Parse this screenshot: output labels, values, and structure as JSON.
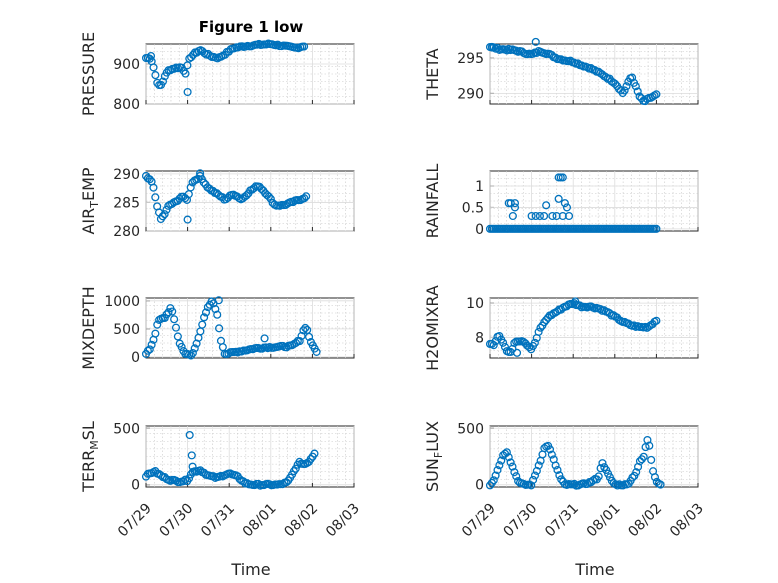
{
  "figure": {
    "title": "Figure 1 low",
    "marker_color": "#0072bd"
  },
  "x_ticks": [
    "07/29",
    "07/30",
    "07/31",
    "08/01",
    "08/02",
    "08/03"
  ],
  "x_label": "Time",
  "chart_data": [
    {
      "type": "scatter",
      "id": "pressure",
      "ylabel": "PRESSURE",
      "title": "Figure 1 low",
      "xlim": [
        0,
        5
      ],
      "ylim": [
        800,
        950
      ],
      "yticks": [
        800,
        900
      ],
      "grid": true,
      "x_axis_ticks": [
        "07/29",
        "07/30",
        "07/31",
        "08/01",
        "08/02",
        "08/03"
      ],
      "anchors": [
        [
          0,
          915
        ],
        [
          0.1,
          915
        ],
        [
          0.15,
          905
        ],
        [
          0.25,
          862
        ],
        [
          0.3,
          845
        ],
        [
          0.38,
          848
        ],
        [
          0.45,
          870
        ],
        [
          0.55,
          885
        ],
        [
          0.7,
          890
        ],
        [
          0.85,
          892
        ],
        [
          0.95,
          878
        ],
        [
          1.05,
          915
        ],
        [
          1.15,
          925
        ],
        [
          1.3,
          935
        ],
        [
          1.45,
          925
        ],
        [
          1.6,
          918
        ],
        [
          1.75,
          915
        ],
        [
          1.9,
          925
        ],
        [
          2.1,
          940
        ],
        [
          2.4,
          945
        ],
        [
          2.7,
          948
        ],
        [
          3.0,
          950
        ],
        [
          3.3,
          945
        ],
        [
          3.6,
          940
        ],
        [
          3.8,
          945
        ]
      ],
      "outliers": [
        [
          1.0,
          830
        ],
        [
          0.12,
          920
        ]
      ]
    },
    {
      "type": "scatter",
      "id": "theta",
      "ylabel": "THETA",
      "xlim": [
        0,
        5
      ],
      "ylim": [
        288.5,
        297
      ],
      "yticks": [
        290,
        295
      ],
      "grid": true,
      "x_axis_ticks": [
        "07/29",
        "07/30",
        "07/31",
        "08/01",
        "08/02",
        "08/03"
      ],
      "anchors": [
        [
          0,
          296.6
        ],
        [
          0.2,
          296.3
        ],
        [
          0.4,
          296.2
        ],
        [
          0.6,
          296.1
        ],
        [
          0.8,
          295.8
        ],
        [
          1.0,
          295.5
        ],
        [
          1.2,
          296.0
        ],
        [
          1.4,
          295.6
        ],
        [
          1.6,
          295.0
        ],
        [
          1.8,
          294.7
        ],
        [
          2.0,
          294.5
        ],
        [
          2.2,
          294.0
        ],
        [
          2.4,
          293.6
        ],
        [
          2.6,
          293.0
        ],
        [
          2.8,
          292.3
        ],
        [
          3.0,
          291.5
        ],
        [
          3.2,
          290.0
        ],
        [
          3.4,
          292.5
        ],
        [
          3.5,
          291.0
        ],
        [
          3.6,
          289.5
        ],
        [
          3.7,
          288.8
        ],
        [
          3.8,
          289.2
        ],
        [
          3.9,
          289.5
        ],
        [
          4.0,
          289.8
        ]
      ],
      "outliers": [
        [
          1.1,
          297.3
        ],
        [
          0.05,
          296.5
        ]
      ]
    },
    {
      "type": "scatter",
      "id": "air_temp",
      "ylabel": "AIR_TEMP",
      "ylabel_main": "AIR",
      "ylabel_sub": "T",
      "ylabel_rest": "EMP",
      "xlim": [
        0,
        5
      ],
      "ylim": [
        280,
        290.5
      ],
      "yticks": [
        280,
        285,
        290
      ],
      "grid": true,
      "x_axis_ticks": [
        "07/29",
        "07/30",
        "07/31",
        "08/01",
        "08/02",
        "08/03"
      ],
      "anchors": [
        [
          0,
          289.5
        ],
        [
          0.15,
          288.5
        ],
        [
          0.25,
          285
        ],
        [
          0.35,
          282
        ],
        [
          0.45,
          283
        ],
        [
          0.55,
          284.5
        ],
        [
          0.7,
          285
        ],
        [
          0.85,
          286
        ],
        [
          1.0,
          285.5
        ],
        [
          1.1,
          288.5
        ],
        [
          1.3,
          289.5
        ],
        [
          1.5,
          287.5
        ],
        [
          1.7,
          286.5
        ],
        [
          1.9,
          285.5
        ],
        [
          2.1,
          286.5
        ],
        [
          2.3,
          285.5
        ],
        [
          2.5,
          287
        ],
        [
          2.7,
          288
        ],
        [
          2.9,
          286.5
        ],
        [
          3.1,
          284.5
        ],
        [
          3.3,
          284.5
        ],
        [
          3.5,
          285
        ],
        [
          3.7,
          285.5
        ],
        [
          3.85,
          286
        ]
      ],
      "outliers": [
        [
          1.0,
          282
        ],
        [
          1.3,
          290.1
        ]
      ]
    },
    {
      "type": "scatter",
      "id": "rainfall",
      "ylabel": "RAINFALL",
      "xlim": [
        0,
        5
      ],
      "ylim": [
        -0.05,
        1.35
      ],
      "yticks": [
        0,
        0.5,
        1
      ],
      "ytick_labels": [
        "0",
        "0.5",
        "1"
      ],
      "grid": true,
      "x_axis_ticks": [
        "07/29",
        "07/30",
        "07/31",
        "08/01",
        "08/02",
        "08/03"
      ],
      "anchors": [
        [
          0,
          0
        ],
        [
          4.0,
          0
        ]
      ],
      "outliers": [
        [
          0.5,
          0.6
        ],
        [
          0.6,
          0.6
        ],
        [
          0.55,
          0.3
        ],
        [
          0.45,
          0.6
        ],
        [
          0.6,
          0.5
        ],
        [
          1.0,
          0.3
        ],
        [
          1.1,
          0.3
        ],
        [
          1.2,
          0.3
        ],
        [
          1.3,
          0.3
        ],
        [
          1.35,
          0.55
        ],
        [
          1.5,
          0.3
        ],
        [
          1.6,
          0.3
        ],
        [
          1.65,
          1.2
        ],
        [
          1.7,
          1.2
        ],
        [
          1.75,
          1.2
        ],
        [
          1.65,
          0.7
        ],
        [
          1.8,
          0.6
        ],
        [
          1.85,
          0.5
        ],
        [
          1.9,
          0.3
        ],
        [
          1.75,
          0.3
        ]
      ]
    },
    {
      "type": "scatter",
      "id": "mixdepth",
      "ylabel": "MIXDEPTH",
      "xlim": [
        0,
        5
      ],
      "ylim": [
        -20,
        1050
      ],
      "yticks": [
        0,
        500,
        1000
      ],
      "grid": true,
      "x_axis_ticks": [
        "07/29",
        "07/30",
        "07/31",
        "08/01",
        "08/02",
        "08/03"
      ],
      "anchors": [
        [
          0,
          50
        ],
        [
          0.1,
          150
        ],
        [
          0.2,
          350
        ],
        [
          0.3,
          650
        ],
        [
          0.45,
          700
        ],
        [
          0.6,
          880
        ],
        [
          0.7,
          600
        ],
        [
          0.8,
          250
        ],
        [
          0.95,
          50
        ],
        [
          1.1,
          20
        ],
        [
          1.2,
          200
        ],
        [
          1.3,
          450
        ],
        [
          1.4,
          700
        ],
        [
          1.5,
          900
        ],
        [
          1.6,
          1000
        ],
        [
          1.7,
          800
        ],
        [
          1.8,
          300
        ],
        [
          1.9,
          50
        ],
        [
          2.1,
          80
        ],
        [
          2.4,
          120
        ],
        [
          2.6,
          150
        ],
        [
          2.9,
          170
        ],
        [
          3.2,
          180
        ],
        [
          3.5,
          190
        ],
        [
          3.7,
          300
        ],
        [
          3.8,
          500
        ],
        [
          3.85,
          550
        ],
        [
          3.9,
          400
        ],
        [
          4.0,
          200
        ],
        [
          4.1,
          100
        ]
      ],
      "outliers": [
        [
          1.75,
          1010
        ],
        [
          2.85,
          330
        ]
      ]
    },
    {
      "type": "scatter",
      "id": "h2omixra",
      "ylabel": "H2OMIXRA",
      "xlim": [
        0,
        5
      ],
      "ylim": [
        6.8,
        10.3
      ],
      "yticks": [
        8,
        10
      ],
      "grid": true,
      "x_axis_ticks": [
        "07/29",
        "07/30",
        "07/31",
        "08/01",
        "08/02",
        "08/03"
      ],
      "anchors": [
        [
          0,
          7.6
        ],
        [
          0.1,
          7.6
        ],
        [
          0.2,
          8.2
        ],
        [
          0.3,
          7.8
        ],
        [
          0.4,
          7.2
        ],
        [
          0.5,
          7.1
        ],
        [
          0.6,
          7.8
        ],
        [
          0.8,
          7.8
        ],
        [
          1.0,
          7.3
        ],
        [
          1.1,
          7.8
        ],
        [
          1.2,
          8.5
        ],
        [
          1.4,
          9.2
        ],
        [
          1.6,
          9.5
        ],
        [
          1.8,
          9.8
        ],
        [
          2.0,
          10.0
        ],
        [
          2.2,
          9.8
        ],
        [
          2.4,
          9.8
        ],
        [
          2.6,
          9.7
        ],
        [
          2.8,
          9.5
        ],
        [
          3.0,
          9.2
        ],
        [
          3.2,
          8.9
        ],
        [
          3.4,
          8.7
        ],
        [
          3.6,
          8.6
        ],
        [
          3.8,
          8.6
        ],
        [
          4.0,
          9.0
        ]
      ],
      "outliers": [
        [
          0.65,
          7.1
        ],
        [
          2.05,
          10.1
        ]
      ]
    },
    {
      "type": "scatter",
      "id": "terr_msl",
      "ylabel": "TERR_MSL",
      "ylabel_main": "TERR",
      "ylabel_sub": "M",
      "ylabel_rest": "SL",
      "xlim": [
        0,
        5
      ],
      "ylim": [
        -20,
        520
      ],
      "yticks": [
        0,
        500
      ],
      "grid": true,
      "x_axis_ticks": [
        "07/29",
        "07/30",
        "07/31",
        "08/01",
        "08/02",
        "08/03"
      ],
      "anchors": [
        [
          0,
          80
        ],
        [
          0.2,
          120
        ],
        [
          0.4,
          70
        ],
        [
          0.6,
          40
        ],
        [
          0.8,
          30
        ],
        [
          1.0,
          40
        ],
        [
          1.1,
          110
        ],
        [
          1.3,
          130
        ],
        [
          1.5,
          80
        ],
        [
          1.7,
          60
        ],
        [
          1.9,
          90
        ],
        [
          2.0,
          100
        ],
        [
          2.2,
          70
        ],
        [
          2.4,
          10
        ],
        [
          2.6,
          0
        ],
        [
          2.8,
          0
        ],
        [
          3.0,
          0
        ],
        [
          3.2,
          0
        ],
        [
          3.4,
          20
        ],
        [
          3.5,
          80
        ],
        [
          3.6,
          150
        ],
        [
          3.7,
          200
        ],
        [
          3.8,
          180
        ],
        [
          3.9,
          200
        ],
        [
          4.0,
          250
        ],
        [
          4.05,
          280
        ]
      ],
      "outliers": [
        [
          1.05,
          440
        ],
        [
          1.1,
          260
        ],
        [
          1.12,
          160
        ]
      ]
    },
    {
      "type": "scatter",
      "id": "sun_flux",
      "ylabel": "SUN_FLUX",
      "ylabel_main": "SUN",
      "ylabel_sub": "F",
      "ylabel_rest": "LUX",
      "xlim": [
        0,
        5
      ],
      "ylim": [
        -20,
        520
      ],
      "yticks": [
        0,
        500
      ],
      "grid": true,
      "x_axis_ticks": [
        "07/29",
        "07/30",
        "07/31",
        "08/01",
        "08/02",
        "08/03"
      ],
      "anchors": [
        [
          0,
          0
        ],
        [
          0.1,
          50
        ],
        [
          0.2,
          150
        ],
        [
          0.3,
          250
        ],
        [
          0.4,
          300
        ],
        [
          0.5,
          200
        ],
        [
          0.6,
          100
        ],
        [
          0.7,
          20
        ],
        [
          0.8,
          0
        ],
        [
          1.0,
          0
        ],
        [
          1.1,
          100
        ],
        [
          1.2,
          200
        ],
        [
          1.3,
          320
        ],
        [
          1.4,
          350
        ],
        [
          1.5,
          250
        ],
        [
          1.6,
          150
        ],
        [
          1.7,
          50
        ],
        [
          1.8,
          0
        ],
        [
          2.2,
          0
        ],
        [
          2.4,
          20
        ],
        [
          2.6,
          60
        ],
        [
          2.7,
          200
        ],
        [
          2.8,
          120
        ],
        [
          2.9,
          50
        ],
        [
          3.0,
          0
        ],
        [
          3.3,
          0
        ],
        [
          3.5,
          100
        ],
        [
          3.6,
          200
        ],
        [
          3.7,
          250
        ],
        [
          3.75,
          350
        ],
        [
          3.8,
          420
        ],
        [
          3.85,
          300
        ],
        [
          3.9,
          150
        ],
        [
          4.0,
          30
        ],
        [
          4.1,
          0
        ]
      ],
      "outliers": []
    }
  ]
}
